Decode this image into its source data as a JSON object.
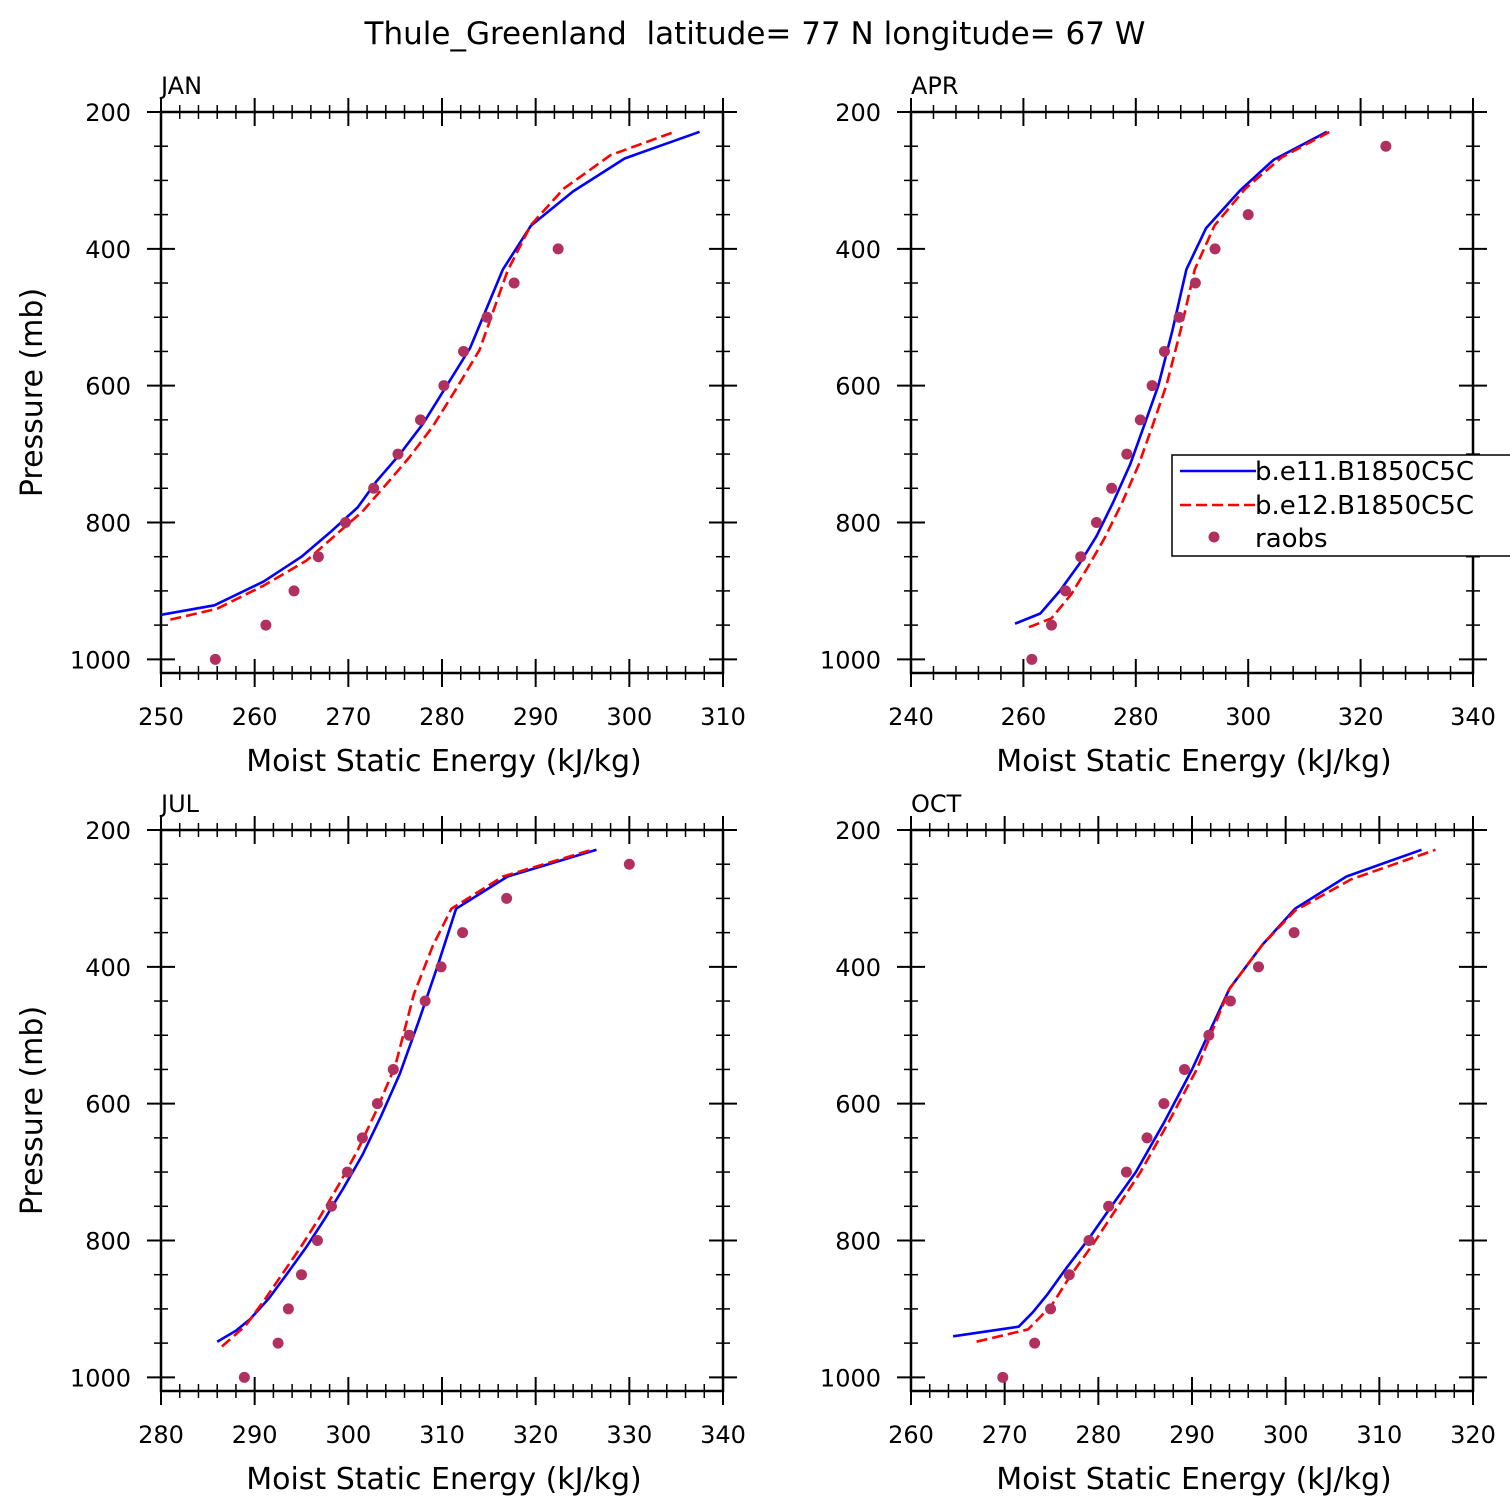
{
  "figure_title": "Thule_Greenland  latitude= 77 N longitude= 67 W",
  "legend": {
    "entries": [
      {
        "label": "b.e11.B1850C5C",
        "style": "solid",
        "color": "#0000ff"
      },
      {
        "label": "b.e12.B1850C5C",
        "style": "dashed",
        "color": "#ff0000"
      },
      {
        "label": "raobs",
        "style": "marker",
        "color": "#b03060"
      }
    ]
  },
  "colors": {
    "model_a": "#0000ff",
    "model_b": "#ff0000",
    "obs": "#b03060"
  },
  "chart_data": [
    {
      "type": "line",
      "title": "JAN",
      "xlabel": "Moist Static Energy (kJ/kg)",
      "ylabel": "Pressure (mb)",
      "xlim": [
        250,
        310
      ],
      "ylim": [
        1000,
        200
      ],
      "xticks": [
        250,
        260,
        270,
        280,
        290,
        300,
        310
      ],
      "yticks": [
        200,
        400,
        600,
        800,
        1000
      ],
      "series": [
        {
          "name": "b.e11.B1850C5C",
          "style": "solid",
          "x": [
            250,
            255.7,
            261,
            265,
            268,
            271,
            273,
            275.5,
            278,
            280.5,
            283,
            286.5,
            289.5,
            294,
            299.5,
            307.5
          ],
          "y": [
            935,
            921,
            886,
            850,
            815,
            778,
            740,
            700,
            655,
            600,
            545,
            430,
            366,
            316,
            268,
            229
          ]
        },
        {
          "name": "b.e12.B1850C5C",
          "style": "dashed",
          "x": [
            251,
            256,
            261,
            265.5,
            268.5,
            271.5,
            274,
            276.5,
            279,
            281.5,
            284,
            287,
            289.5,
            293,
            298,
            305
          ],
          "y": [
            942,
            926,
            892,
            856,
            820,
            784,
            745,
            705,
            660,
            605,
            548,
            432,
            365,
            312,
            263,
            228
          ]
        },
        {
          "name": "raobs",
          "style": "marker",
          "x": [
            255.8,
            261.2,
            264.2,
            266.8,
            269.7,
            272.7,
            275.3,
            277.7,
            280.2,
            282.3,
            284.8,
            287.7,
            292.4
          ],
          "y": [
            1000,
            950,
            900,
            850,
            800,
            750,
            700,
            650,
            600,
            550,
            500,
            450,
            400
          ]
        }
      ]
    },
    {
      "type": "line",
      "title": "APR",
      "xlabel": "Moist Static Energy (kJ/kg)",
      "ylabel": "Pressure (mb)",
      "xlim": [
        240,
        340
      ],
      "ylim": [
        1000,
        200
      ],
      "xticks": [
        240,
        260,
        280,
        300,
        320,
        340
      ],
      "yticks": [
        200,
        400,
        600,
        800,
        1000
      ],
      "series": [
        {
          "name": "b.e11.B1850C5C",
          "style": "solid",
          "x": [
            258.5,
            263,
            266.5,
            270,
            273,
            276,
            279,
            281.5,
            284,
            286.5,
            289,
            292.5,
            298.5,
            304.5,
            314
          ],
          "y": [
            948,
            933,
            900,
            860,
            820,
            770,
            715,
            658,
            600,
            520,
            430,
            370,
            315,
            270,
            229
          ]
        },
        {
          "name": "b.e12.B1850C5C",
          "style": "dashed",
          "x": [
            261,
            265,
            268.5,
            271.5,
            274.5,
            277.5,
            280.5,
            283,
            285.5,
            288,
            290.5,
            294,
            299.5,
            306,
            314.5
          ],
          "y": [
            953,
            940,
            905,
            865,
            822,
            772,
            716,
            658,
            598,
            518,
            430,
            366,
            312,
            266,
            229
          ]
        },
        {
          "name": "raobs",
          "style": "marker",
          "x": [
            261.5,
            265,
            267.5,
            270.2,
            273,
            275.7,
            278.4,
            280.8,
            282.9,
            285.1,
            287.7,
            290.6,
            294.1,
            300,
            324.5
          ],
          "y": [
            1000,
            950,
            900,
            850,
            800,
            750,
            700,
            650,
            600,
            550,
            500,
            450,
            400,
            350,
            250
          ]
        }
      ]
    },
    {
      "type": "line",
      "title": "JUL",
      "xlabel": "Moist Static Energy (kJ/kg)",
      "ylabel": "Pressure (mb)",
      "xlim": [
        280,
        340
      ],
      "ylim": [
        1000,
        200
      ],
      "xticks": [
        280,
        290,
        300,
        310,
        320,
        330,
        340
      ],
      "yticks": [
        200,
        400,
        600,
        800,
        1000
      ],
      "series": [
        {
          "name": "b.e11.B1850C5C",
          "style": "solid",
          "x": [
            286,
            288,
            289.5,
            291.5,
            293.5,
            295.5,
            297.5,
            299.5,
            301.5,
            303.5,
            305.5,
            307.5,
            309.5,
            311.5,
            317,
            326.5
          ],
          "y": [
            948,
            932,
            915,
            885,
            848,
            810,
            768,
            723,
            675,
            618,
            556,
            480,
            400,
            315,
            268,
            229
          ]
        },
        {
          "name": "b.e12.B1850C5C",
          "style": "dashed",
          "x": [
            286.5,
            289,
            291,
            293,
            295,
            297,
            299,
            301,
            303,
            305,
            307,
            309,
            311,
            316.5,
            326
          ],
          "y": [
            955,
            925,
            888,
            848,
            808,
            765,
            718,
            668,
            610,
            545,
            440,
            370,
            315,
            268,
            229
          ]
        },
        {
          "name": "raobs",
          "style": "marker",
          "x": [
            288.9,
            292.5,
            293.6,
            295,
            296.7,
            298.2,
            299.9,
            301.5,
            303.1,
            304.8,
            306.5,
            308.2,
            309.9,
            312.2,
            316.9,
            330
          ],
          "y": [
            1000,
            950,
            900,
            850,
            800,
            750,
            700,
            650,
            600,
            550,
            500,
            450,
            400,
            350,
            300,
            250
          ]
        }
      ]
    },
    {
      "type": "line",
      "title": "OCT",
      "xlabel": "Moist Static Energy (kJ/kg)",
      "ylabel": "Pressure (mb)",
      "xlim": [
        260,
        320
      ],
      "ylim": [
        1000,
        200
      ],
      "xticks": [
        260,
        270,
        280,
        290,
        300,
        310,
        320
      ],
      "yticks": [
        200,
        400,
        600,
        800,
        1000
      ],
      "series": [
        {
          "name": "b.e11.B1850C5C",
          "style": "solid",
          "x": [
            264.5,
            271.5,
            273,
            274.5,
            276.5,
            279,
            281.5,
            284,
            287,
            290,
            294,
            297.5,
            301,
            306.5,
            314.5
          ],
          "y": [
            940,
            926,
            905,
            880,
            842,
            797,
            748,
            700,
            628,
            550,
            432,
            368,
            315,
            268,
            229
          ]
        },
        {
          "name": "b.e12.B1850C5C",
          "style": "dashed",
          "x": [
            267,
            272.5,
            275,
            277,
            279.5,
            282,
            284.5,
            287.5,
            290.5,
            294,
            297.5,
            301,
            307,
            316
          ],
          "y": [
            948,
            930,
            895,
            852,
            804,
            752,
            700,
            627,
            550,
            432,
            368,
            318,
            272,
            229
          ]
        },
        {
          "name": "raobs",
          "style": "marker",
          "x": [
            269.8,
            273.2,
            274.9,
            276.9,
            279,
            281.1,
            283,
            285.2,
            287,
            289.2,
            291.8,
            294.1,
            297.1,
            300.9
          ],
          "y": [
            1000,
            950,
            900,
            850,
            800,
            750,
            700,
            650,
            600,
            550,
            500,
            450,
            400,
            350
          ]
        }
      ]
    }
  ]
}
